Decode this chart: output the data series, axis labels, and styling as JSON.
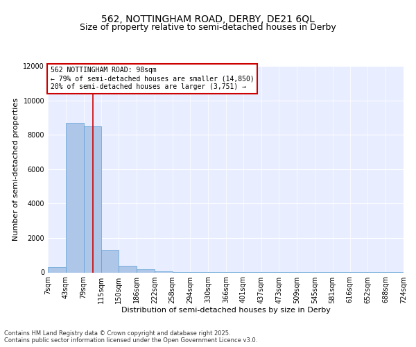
{
  "title1": "562, NOTTINGHAM ROAD, DERBY, DE21 6QL",
  "title2": "Size of property relative to semi-detached houses in Derby",
  "xlabel": "Distribution of semi-detached houses by size in Derby",
  "ylabel": "Number of semi-detached properties",
  "bin_edges": [
    7,
    43,
    79,
    115,
    150,
    186,
    222,
    258,
    294,
    330,
    366,
    401,
    437,
    473,
    509,
    545,
    581,
    616,
    652,
    688,
    724
  ],
  "bar_heights": [
    300,
    8700,
    8500,
    1300,
    400,
    200,
    80,
    40,
    20,
    15,
    10,
    8,
    6,
    5,
    4,
    3,
    2,
    2,
    1,
    1
  ],
  "bar_color": "#aec6e8",
  "bar_edgecolor": "#5a9fd4",
  "property_size": 98,
  "annotation_line1": "562 NOTTINGHAM ROAD: 98sqm",
  "annotation_line2": "← 79% of semi-detached houses are smaller (14,850)",
  "annotation_line3": "20% of semi-detached houses are larger (3,751) →",
  "red_line_color": "#cc0000",
  "annotation_box_color": "#cc0000",
  "ylim": [
    0,
    12000
  ],
  "background_color": "#e8eeff",
  "footer_text": "Contains HM Land Registry data © Crown copyright and database right 2025.\nContains public sector information licensed under the Open Government Licence v3.0.",
  "title_fontsize": 10,
  "subtitle_fontsize": 9,
  "axis_label_fontsize": 8,
  "tick_fontsize": 7,
  "annotation_fontsize": 7,
  "footer_fontsize": 6
}
